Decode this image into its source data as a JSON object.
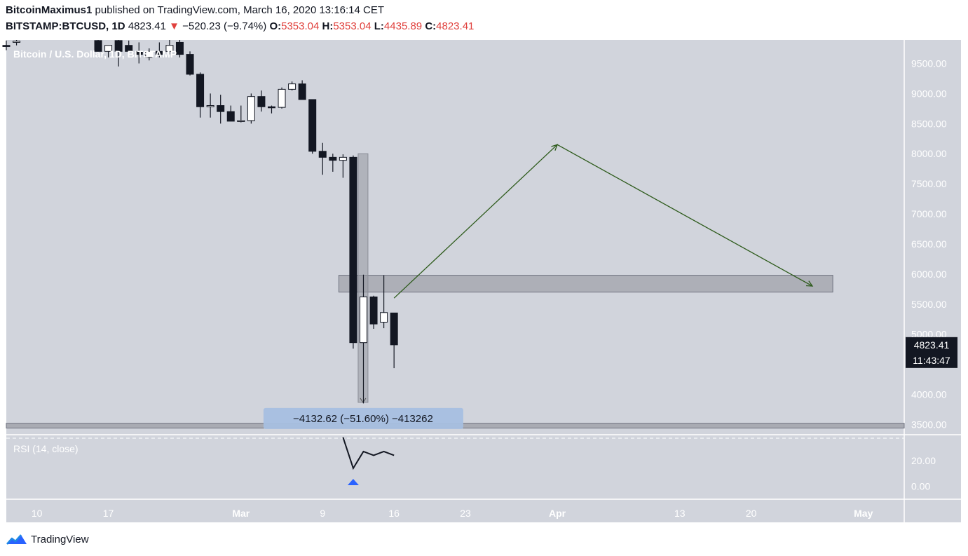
{
  "header": {
    "author": "BitcoinMaximus1",
    "published": "published on TradingView.com, March 16, 2020 13:16:14 CET",
    "symbol": "BITSTAMP:BTCUSD, 1D",
    "last": "4823.41",
    "change_arrow": "▼",
    "change": "−520.23 (−9.74%)",
    "o_label": "O:",
    "o": "5353.04",
    "h_label": "H:",
    "h": "5353.04",
    "l_label": "L:",
    "l": "4435.89",
    "c_label": "C:",
    "c": "4823.41"
  },
  "footer": {
    "brand": "TradingView",
    "logo_icon": "tradingview-logo-icon"
  },
  "colors": {
    "pane_bg": "#d1d4dc",
    "candle_down": "#131722",
    "candle_up": "#ffffff",
    "zone": "#a9abb3",
    "projection": "#2e5b1c",
    "rsi_marker": "#2962ff",
    "price_tag": "#131722"
  },
  "chart_data": {
    "type": "candlestick",
    "title": "Bitcoin / U.S. Dollar, 1D, BITSTAMP",
    "price_tags": {
      "last_price": "4823.41",
      "countdown": "11:43:47"
    },
    "y_ticks": [
      "9500.00",
      "9000.00",
      "8500.00",
      "8000.00",
      "7500.00",
      "7000.00",
      "6500.00",
      "6000.00",
      "5500.00",
      "5000.00",
      "4000.00",
      "3500.00"
    ],
    "ylim": [
      3330,
      9890
    ],
    "x_ticks": [
      {
        "label": "10",
        "date": "2020-02-10"
      },
      {
        "label": "17",
        "date": "2020-02-17"
      },
      {
        "label": "Mar",
        "date": "2020-03-01"
      },
      {
        "label": "9",
        "date": "2020-03-09"
      },
      {
        "label": "16",
        "date": "2020-03-16"
      },
      {
        "label": "23",
        "date": "2020-03-23"
      },
      {
        "label": "Apr",
        "date": "2020-04-01"
      },
      {
        "label": "13",
        "date": "2020-04-13"
      },
      {
        "label": "20",
        "date": "2020-04-20"
      },
      {
        "label": "May",
        "date": "2020-05-01"
      }
    ],
    "xlim": [
      "2020-02-07",
      "2020-05-05"
    ],
    "candles": [
      {
        "date": "2020-02-07",
        "o": 9800,
        "h": 9880,
        "l": 9720,
        "c": 9780
      },
      {
        "date": "2020-02-08",
        "o": 9850,
        "h": 9890,
        "l": 9800,
        "c": 9870
      },
      {
        "date": "2020-02-16",
        "o": 9880,
        "h": 9900,
        "l": 9700,
        "c": 9700
      },
      {
        "date": "2020-02-17",
        "o": 9700,
        "h": 9800,
        "l": 9600,
        "c": 9800
      },
      {
        "date": "2020-02-18",
        "o": 9880,
        "h": 9900,
        "l": 9450,
        "c": 9700
      },
      {
        "date": "2020-02-19",
        "o": 9800,
        "h": 9880,
        "l": 9600,
        "c": 9700
      },
      {
        "date": "2020-02-20",
        "o": 9700,
        "h": 9850,
        "l": 9500,
        "c": 9650
      },
      {
        "date": "2020-02-21",
        "o": 9600,
        "h": 9750,
        "l": 9550,
        "c": 9700
      },
      {
        "date": "2020-02-22",
        "o": 9700,
        "h": 9850,
        "l": 9600,
        "c": 9650
      },
      {
        "date": "2020-02-23",
        "o": 9700,
        "h": 9900,
        "l": 9650,
        "c": 9800
      },
      {
        "date": "2020-02-24",
        "o": 9850,
        "h": 9890,
        "l": 9600,
        "c": 9650
      },
      {
        "date": "2020-02-25",
        "o": 9650,
        "h": 9700,
        "l": 9300,
        "c": 9320
      },
      {
        "date": "2020-02-26",
        "o": 9320,
        "h": 9350,
        "l": 8600,
        "c": 8780
      },
      {
        "date": "2020-02-27",
        "o": 8780,
        "h": 9000,
        "l": 8600,
        "c": 8800
      },
      {
        "date": "2020-02-28",
        "o": 8800,
        "h": 8980,
        "l": 8500,
        "c": 8700
      },
      {
        "date": "2020-02-29",
        "o": 8700,
        "h": 8800,
        "l": 8540,
        "c": 8540
      },
      {
        "date": "2020-03-01",
        "o": 8540,
        "h": 8800,
        "l": 8520,
        "c": 8550
      },
      {
        "date": "2020-03-02",
        "o": 8550,
        "h": 9000,
        "l": 8500,
        "c": 8950
      },
      {
        "date": "2020-03-03",
        "o": 8950,
        "h": 9050,
        "l": 8700,
        "c": 8780
      },
      {
        "date": "2020-03-04",
        "o": 8780,
        "h": 8800,
        "l": 8670,
        "c": 8770
      },
      {
        "date": "2020-03-05",
        "o": 8770,
        "h": 9100,
        "l": 8750,
        "c": 9070
      },
      {
        "date": "2020-03-06",
        "o": 9070,
        "h": 9200,
        "l": 9050,
        "c": 9160
      },
      {
        "date": "2020-03-07",
        "o": 9160,
        "h": 9220,
        "l": 8910,
        "c": 8900
      },
      {
        "date": "2020-03-08",
        "o": 8900,
        "h": 8900,
        "l": 8000,
        "c": 8040
      },
      {
        "date": "2020-03-09",
        "o": 8040,
        "h": 8180,
        "l": 7650,
        "c": 7940
      },
      {
        "date": "2020-03-10",
        "o": 7940,
        "h": 8000,
        "l": 7700,
        "c": 7890
      },
      {
        "date": "2020-03-11",
        "o": 7890,
        "h": 7990,
        "l": 7600,
        "c": 7940
      },
      {
        "date": "2020-03-12",
        "o": 7940,
        "h": 7970,
        "l": 4760,
        "c": 4860
      },
      {
        "date": "2020-03-13",
        "o": 4860,
        "h": 5990,
        "l": 3850,
        "c": 5620
      },
      {
        "date": "2020-03-14",
        "o": 5620,
        "h": 5640,
        "l": 5090,
        "c": 5170
      },
      {
        "date": "2020-03-15",
        "o": 5200,
        "h": 5980,
        "l": 5100,
        "c": 5360
      },
      {
        "date": "2020-03-16",
        "o": 5353.04,
        "h": 5353.04,
        "l": 4435.89,
        "c": 4823.41
      }
    ],
    "support_zone": {
      "from": "2020-03-11",
      "to": "2020-04-28",
      "low": 5700,
      "high": 5980
    },
    "projection": [
      {
        "date": "2020-03-16",
        "price": 5600
      },
      {
        "date": "2020-04-01",
        "price": 8150
      },
      {
        "date": "2020-04-26",
        "price": 5800
      }
    ],
    "measure": {
      "label": "−4132.62 (−51.60%) −413262",
      "from_date": "2020-03-12",
      "from_price": 8000,
      "to_price": 3867
    },
    "rsi": {
      "label": "RSI (14, close)",
      "ticks": [
        "20.00",
        "0.00"
      ],
      "ylim": [
        -10,
        40
      ],
      "points": [
        {
          "date": "2020-03-11",
          "value": 38
        },
        {
          "date": "2020-03-12",
          "value": 14
        },
        {
          "date": "2020-03-13",
          "value": 27
        },
        {
          "date": "2020-03-14",
          "value": 24
        },
        {
          "date": "2020-03-15",
          "value": 27
        },
        {
          "date": "2020-03-16",
          "value": 24
        }
      ]
    }
  }
}
